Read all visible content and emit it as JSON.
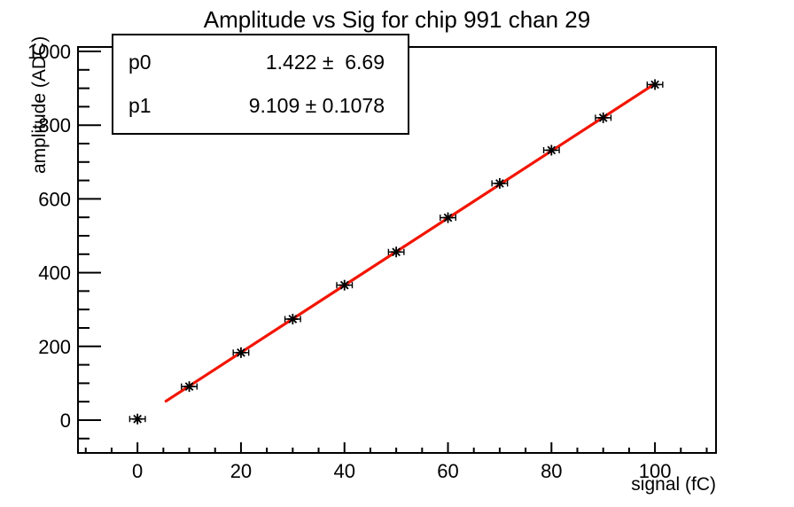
{
  "window": {
    "background": "#ffffff"
  },
  "chart_data": {
    "type": "scatter",
    "title": "Amplitude vs Sig for chip 991 chan 29",
    "xlabel": "signal (fC)",
    "ylabel": "amplitude (ADC)",
    "xlim": [
      -11.5,
      111.8
    ],
    "ylim": [
      -89,
      1012
    ],
    "grid": false,
    "legend_position": "none",
    "axis_color": "#000000",
    "x_major_ticks": [
      0,
      20,
      40,
      60,
      80,
      100
    ],
    "x_minor_step": 5,
    "y_major_ticks": [
      0,
      200,
      400,
      600,
      800,
      1000
    ],
    "y_minor_step": 50,
    "points": {
      "marker": "asterisk",
      "color": "#000000",
      "x": [
        0,
        10,
        20,
        30,
        40,
        50,
        60,
        70,
        80,
        90,
        100
      ],
      "y": [
        3,
        91,
        183,
        274,
        366,
        456,
        549,
        642,
        732,
        820,
        910
      ],
      "x_err": 1.5
    },
    "fit": {
      "type": "linear",
      "p0": 1.422,
      "p1": 9.109,
      "range": [
        5.5,
        100
      ],
      "color": "#f21500",
      "width": 3.2
    }
  },
  "stats_box": {
    "rows": [
      {
        "label": "p0",
        "value": "1.422 ±  6.69"
      },
      {
        "label": "p1",
        "value": "9.109 ± 0.1078"
      }
    ]
  }
}
